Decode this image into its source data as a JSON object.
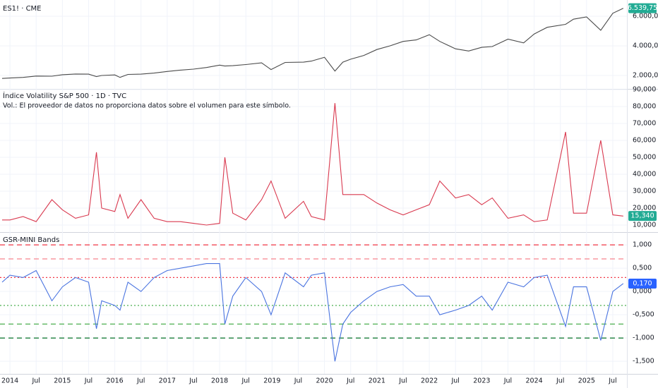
{
  "chart_data": [
    {
      "type": "line",
      "title": "ES1! · CME",
      "color": "#4a4a4a",
      "x": [
        2013.85,
        2014.0,
        2014.25,
        2014.5,
        2014.8,
        2015.0,
        2015.25,
        2015.5,
        2015.65,
        2015.75,
        2016.0,
        2016.1,
        2016.25,
        2016.5,
        2016.75,
        2017.0,
        2017.25,
        2017.5,
        2017.75,
        2018.0,
        2018.1,
        2018.25,
        2018.5,
        2018.8,
        2018.98,
        2019.25,
        2019.6,
        2019.75,
        2020.0,
        2020.2,
        2020.35,
        2020.5,
        2020.75,
        2021.0,
        2021.25,
        2021.5,
        2021.75,
        2022.0,
        2022.2,
        2022.5,
        2022.75,
        2023.0,
        2023.2,
        2023.5,
        2023.8,
        2024.0,
        2024.25,
        2024.6,
        2024.75,
        2025.0,
        2025.27,
        2025.5,
        2025.7
      ],
      "values": [
        1800,
        1830,
        1870,
        1960,
        1950,
        2050,
        2100,
        2090,
        1930,
        2000,
        2040,
        1870,
        2070,
        2090,
        2160,
        2270,
        2360,
        2430,
        2540,
        2700,
        2640,
        2660,
        2740,
        2850,
        2400,
        2880,
        2900,
        2970,
        3230,
        2300,
        2900,
        3100,
        3350,
        3750,
        4000,
        4300,
        4400,
        4750,
        4300,
        3800,
        3650,
        3900,
        3950,
        4450,
        4200,
        4800,
        5250,
        5450,
        5800,
        5950,
        5050,
        6200,
        6540
      ],
      "xlim": [
        2013.81,
        2025.77
      ],
      "ylim": [
        1190,
        7000
      ],
      "yticks": [
        {
          "value": 2000,
          "label": "2.000,00"
        },
        {
          "value": 4000,
          "label": "4.000,00"
        },
        {
          "value": 6000,
          "label": "6.000,00"
        }
      ],
      "last_value": {
        "value": 6539.75,
        "label": "6.539,75"
      },
      "badge_color": "#22ab94"
    },
    {
      "type": "line",
      "title": "Índice Volatility S&P 500 · 1D · TVC",
      "subtitle": "Vol.: El proveedor de datos no proporciona datos sobre el volumen para este símbolo.",
      "color": "#d9394f",
      "x": [
        2013.85,
        2014.0,
        2014.25,
        2014.5,
        2014.8,
        2015.0,
        2015.25,
        2015.5,
        2015.65,
        2015.75,
        2016.0,
        2016.1,
        2016.25,
        2016.5,
        2016.75,
        2017.0,
        2017.25,
        2017.5,
        2017.75,
        2018.0,
        2018.1,
        2018.25,
        2018.5,
        2018.8,
        2018.98,
        2019.25,
        2019.6,
        2019.75,
        2020.0,
        2020.2,
        2020.35,
        2020.5,
        2020.75,
        2021.0,
        2021.25,
        2021.5,
        2021.75,
        2022.0,
        2022.2,
        2022.5,
        2022.75,
        2023.0,
        2023.2,
        2023.5,
        2023.8,
        2024.0,
        2024.25,
        2024.6,
        2024.75,
        2025.0,
        2025.27,
        2025.5,
        2025.7
      ],
      "values": [
        13,
        13,
        15,
        12,
        25,
        19,
        14,
        16,
        53,
        20,
        18,
        28,
        14,
        25,
        14,
        12,
        12,
        11,
        10,
        11,
        50,
        17,
        13,
        25,
        36,
        14,
        24,
        15,
        13,
        82,
        28,
        28,
        28,
        23,
        19,
        16,
        19,
        22,
        36,
        26,
        28,
        22,
        26,
        14,
        16,
        12,
        13,
        65,
        17,
        17,
        60,
        16,
        15.3
      ],
      "xlim": [
        2013.81,
        2025.77
      ],
      "ylim": [
        6.25,
        90.4
      ],
      "yticks": [
        {
          "value": 10,
          "label": "10,000"
        },
        {
          "value": 20,
          "label": "20,000"
        },
        {
          "value": 30,
          "label": "30,000"
        },
        {
          "value": 40,
          "label": "40,000"
        },
        {
          "value": 50,
          "label": "50,000"
        },
        {
          "value": 60,
          "label": "60,000"
        },
        {
          "value": 70,
          "label": "70,000"
        },
        {
          "value": 80,
          "label": "80,000"
        },
        {
          "value": 90,
          "label": "90,000"
        }
      ],
      "last_value": {
        "value": 15.34,
        "label": "15,340"
      },
      "badge_color": "#22ab94"
    },
    {
      "type": "line",
      "title": "GSR-MINI Bands",
      "color": "#4a74e0",
      "x": [
        2013.85,
        2014.0,
        2014.25,
        2014.5,
        2014.8,
        2015.0,
        2015.25,
        2015.5,
        2015.65,
        2015.75,
        2016.0,
        2016.1,
        2016.25,
        2016.5,
        2016.75,
        2017.0,
        2017.25,
        2017.5,
        2017.75,
        2018.0,
        2018.1,
        2018.25,
        2018.5,
        2018.8,
        2018.98,
        2019.25,
        2019.6,
        2019.75,
        2020.0,
        2020.2,
        2020.35,
        2020.5,
        2020.75,
        2021.0,
        2021.25,
        2021.5,
        2021.75,
        2022.0,
        2022.2,
        2022.5,
        2022.75,
        2023.0,
        2023.2,
        2023.5,
        2023.8,
        2024.0,
        2024.25,
        2024.6,
        2024.75,
        2025.0,
        2025.27,
        2025.5,
        2025.7
      ],
      "values": [
        0.2,
        0.35,
        0.3,
        0.45,
        -0.2,
        0.1,
        0.3,
        0.2,
        -0.8,
        -0.2,
        -0.3,
        -0.4,
        0.2,
        0.0,
        0.3,
        0.45,
        0.5,
        0.55,
        0.6,
        0.6,
        -0.7,
        -0.1,
        0.3,
        0.0,
        -0.5,
        0.4,
        0.1,
        0.35,
        0.4,
        -1.5,
        -0.7,
        -0.45,
        -0.2,
        0.0,
        0.1,
        0.15,
        -0.1,
        -0.1,
        -0.5,
        -0.4,
        -0.3,
        -0.1,
        -0.4,
        0.2,
        0.1,
        0.3,
        0.35,
        -0.75,
        0.1,
        0.1,
        -1.05,
        0.0,
        0.17
      ],
      "xlim": [
        2013.81,
        2025.77
      ],
      "ylim": [
        -1.77,
        1.26
      ],
      "yticks": [
        {
          "value": 1,
          "label": "1,000"
        },
        {
          "value": 0.5,
          "label": "0,500"
        },
        {
          "value": 0,
          "label": "0,000"
        },
        {
          "value": -0.5,
          "label": "-0,500"
        },
        {
          "value": -1,
          "label": "-1,000"
        },
        {
          "value": -1.5,
          "label": "-1,500"
        }
      ],
      "bands": [
        {
          "value": 1,
          "color": "#f23645",
          "style": "dashed"
        },
        {
          "value": 0.7,
          "color": "#f7848e",
          "style": "dashed"
        },
        {
          "value": 0.3,
          "color": "#f23645",
          "style": "dotted"
        },
        {
          "value": -0.3,
          "color": "#4caf50",
          "style": "dotted"
        },
        {
          "value": -0.7,
          "color": "#4caf50",
          "style": "dashed"
        },
        {
          "value": -1,
          "color": "#1b7e3a",
          "style": "dashed"
        }
      ],
      "last_value": {
        "value": 0.17,
        "label": "0,170"
      },
      "badge_color": "#2962ff",
      "xticks": [
        2014,
        {
          "value": 2014.5,
          "label": "Jul"
        },
        2015,
        {
          "value": 2015.5,
          "label": "Jul"
        },
        2016,
        {
          "value": 2016.5,
          "label": "Jul"
        },
        2017,
        {
          "value": 2017.5,
          "label": "Jul"
        },
        2018,
        {
          "value": 2018.5,
          "label": "Jul"
        },
        2019,
        {
          "value": 2019.5,
          "label": "Jul"
        },
        2020,
        {
          "value": 2020.5,
          "label": "Jul"
        },
        2021,
        {
          "value": 2021.5,
          "label": "Jul"
        },
        2022,
        {
          "value": 2022.5,
          "label": "Jul"
        },
        2023,
        {
          "value": 2023.5,
          "label": "Jul"
        },
        2024,
        {
          "value": 2024.5,
          "label": "Jul"
        },
        2025,
        {
          "value": 2025.5,
          "label": "Jul"
        }
      ]
    }
  ]
}
